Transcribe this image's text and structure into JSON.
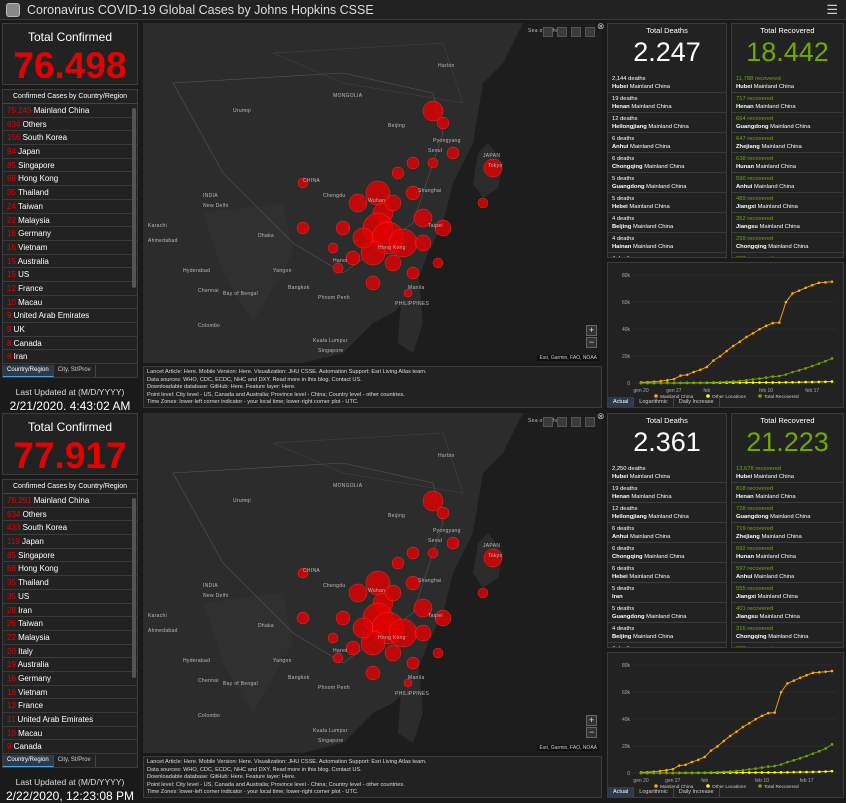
{
  "app": {
    "title": "Coronavirus COVID-19 Global Cases by Johns Hopkins CSSE"
  },
  "colors": {
    "confirmed": "#e60000",
    "recovered": "#70a800",
    "chart_mainland": "#ffaa00",
    "chart_other": "#ffff00",
    "chart_recovered": "#70a800"
  },
  "labels": {
    "total_confirmed": "Total Confirmed",
    "by_country": "Confirmed Cases by Country/Region",
    "tab_country": "Country/Region",
    "tab_city": "City, St/Prov",
    "last_updated": "Last Updated at (M/D/YYYY)",
    "total_deaths": "Total Deaths",
    "total_recovered": "Total Recovered",
    "chart_tabs": [
      "Actual",
      "Logarithmic",
      "Daily Increase"
    ],
    "attribution": "Esri, Garmin, FAO, NOAA",
    "info_line1": "Lancet Article: Here. Mobile Version: Here. Visualization: JHU CSSE. Automation Support: Esri Living Atlas team.",
    "info_line2": "Data sources: WHO, CDC, ECDC, NHC and DXY. Read more in this blog. Contact US.",
    "info_line3": "Downloadable database: GitHub: Here. Feature layer: Here.",
    "info_line4": "Point level: City level - US, Canada and Australia; Province level - China; Country level - other countries.",
    "info_line5": "Time Zones: lower-left corner indicator - your local time; lower-right corner plot - UTC."
  },
  "map_labels": [
    "MONGOLIA",
    "CHINA",
    "JAPAN",
    "INDIA",
    "Seoul",
    "Beijing",
    "Tokyo",
    "Shanghai",
    "Hong Kong",
    "Taipei",
    "Manila",
    "Bangkok",
    "New Delhi",
    "Hanoi",
    "Dhaka",
    "Yangon",
    "Urumqi",
    "Karachi",
    "Ahmedabad",
    "Hyderabad",
    "Chennai",
    "Colombo",
    "Bay of Bengal",
    "Phnom Penh",
    "PHILIPPINES",
    "Kuala Lumpur",
    "Singapore",
    "Pyongyang",
    "Harbin",
    "Sea of Okhotsk",
    "Chengdu",
    "Wuhan"
  ],
  "snapshots": [
    {
      "total_confirmed": "76.498",
      "last_updated": "2/21/2020, 4:43:02 AM",
      "countries": [
        [
          "75.245",
          "Mainland China"
        ],
        [
          "634",
          "Others"
        ],
        [
          "156",
          "South Korea"
        ],
        [
          "94",
          "Japan"
        ],
        [
          "85",
          "Singapore"
        ],
        [
          "68",
          "Hong Kong"
        ],
        [
          "35",
          "Thailand"
        ],
        [
          "24",
          "Taiwan"
        ],
        [
          "22",
          "Malaysia"
        ],
        [
          "16",
          "Germany"
        ],
        [
          "16",
          "Vietnam"
        ],
        [
          "15",
          "Australia"
        ],
        [
          "15",
          "US"
        ],
        [
          "12",
          "France"
        ],
        [
          "10",
          "Macau"
        ],
        [
          "9",
          "United Arab Emirates"
        ],
        [
          "9",
          "UK"
        ],
        [
          "8",
          "Canada"
        ],
        [
          "8",
          "Iran"
        ]
      ],
      "total_deaths": "2.247",
      "deaths": [
        [
          "2,144 deaths",
          "Hubei",
          "Mainland China"
        ],
        [
          "19 deaths",
          "Henan",
          "Mainland China"
        ],
        [
          "12 deaths",
          "Heilongjiang",
          "Mainland China"
        ],
        [
          "6 deaths",
          "Anhui",
          "Mainland China"
        ],
        [
          "6 deaths",
          "Chongqing",
          "Mainland China"
        ],
        [
          "5 deaths",
          "Guangdong",
          "Mainland China"
        ],
        [
          "5 deaths",
          "Hebei",
          "Mainland China"
        ],
        [
          "4 deaths",
          "Beijing",
          "Mainland China"
        ],
        [
          "4 deaths",
          "Hainan",
          "Mainland China"
        ],
        [
          "4 deaths",
          "",
          ""
        ]
      ],
      "total_recovered": "18.442",
      "recovered": [
        [
          "11,788 recovered",
          "Hubei",
          "Mainland China"
        ],
        [
          "717 recovered",
          "Henan",
          "Mainland China"
        ],
        [
          "664 recovered",
          "Guangdong",
          "Mainland China"
        ],
        [
          "647 recovered",
          "Zhejiang",
          "Mainland China"
        ],
        [
          "638 recovered",
          "Hunan",
          "Mainland China"
        ],
        [
          "590 recovered",
          "Anhui",
          "Mainland China"
        ],
        [
          "489 recovered",
          "Jiangxi",
          "Mainland China"
        ],
        [
          "352 recovered",
          "Jiangsu",
          "Mainland China"
        ],
        [
          "299 recovered",
          "Chongqing",
          "Mainland China"
        ],
        [
          "270 recovered",
          "",
          ""
        ]
      ],
      "chart_active_tab": 0
    },
    {
      "total_confirmed": "77.917",
      "last_updated": "2/22/2020, 12:23:08 PM",
      "countries": [
        [
          "76.291",
          "Mainland China"
        ],
        [
          "634",
          "Others"
        ],
        [
          "433",
          "South Korea"
        ],
        [
          "119",
          "Japan"
        ],
        [
          "85",
          "Singapore"
        ],
        [
          "68",
          "Hong Kong"
        ],
        [
          "35",
          "Thailand"
        ],
        [
          "35",
          "US"
        ],
        [
          "28",
          "Iran"
        ],
        [
          "26",
          "Taiwan"
        ],
        [
          "22",
          "Malaysia"
        ],
        [
          "20",
          "Italy"
        ],
        [
          "19",
          "Australia"
        ],
        [
          "16",
          "Germany"
        ],
        [
          "16",
          "Vietnam"
        ],
        [
          "12",
          "France"
        ],
        [
          "11",
          "United Arab Emirates"
        ],
        [
          "10",
          "Macau"
        ],
        [
          "9",
          "Canada"
        ]
      ],
      "total_deaths": "2.361",
      "deaths": [
        [
          "2,250 deaths",
          "Hubei",
          "Mainland China"
        ],
        [
          "19 deaths",
          "Henan",
          "Mainland China"
        ],
        [
          "12 deaths",
          "Heilongjiang",
          "Mainland China"
        ],
        [
          "6 deaths",
          "Anhui",
          "Mainland China"
        ],
        [
          "6 deaths",
          "Chongqing",
          "Mainland China"
        ],
        [
          "6 deaths",
          "Hebei",
          "Mainland China"
        ],
        [
          "5 deaths",
          "Iran",
          ""
        ],
        [
          "5 deaths",
          "Guangdong",
          "Mainland China"
        ],
        [
          "4 deaths",
          "Beijing",
          "Mainland China"
        ],
        [
          "4 deaths",
          "",
          ""
        ]
      ],
      "total_recovered": "21.223",
      "recovered": [
        [
          "13,678 recovered",
          "Hubei",
          "Mainland China"
        ],
        [
          "818 recovered",
          "Henan",
          "Mainland China"
        ],
        [
          "728 recovered",
          "Guangdong",
          "Mainland China"
        ],
        [
          "719 recovered",
          "Zhejiang",
          "Mainland China"
        ],
        [
          "692 recovered",
          "Hunan",
          "Mainland China"
        ],
        [
          "597 recovered",
          "Anhui",
          "Mainland China"
        ],
        [
          "555 recovered",
          "Jiangxi",
          "Mainland China"
        ],
        [
          "401 recovered",
          "Jiangsu",
          "Mainland China"
        ],
        [
          "316 recovered",
          "Chongqing",
          "Mainland China"
        ],
        [
          "302 recovered",
          "",
          ""
        ]
      ],
      "chart_active_tab": 0
    }
  ],
  "chart_data": [
    {
      "type": "line",
      "title": "",
      "x": [
        "jan 22",
        "jan 23",
        "jan 24",
        "jan 25",
        "jan 26",
        "jan 27",
        "jan 28",
        "jan 29",
        "jan 30",
        "jan 31",
        "feb 1",
        "feb 2",
        "feb 3",
        "feb 4",
        "feb 5",
        "feb 6",
        "feb 7",
        "feb 8",
        "feb 9",
        "feb 10",
        "feb 11",
        "feb 12",
        "feb 13",
        "feb 14",
        "feb 15",
        "feb 16",
        "feb 17",
        "feb 18",
        "feb 19",
        "feb 20"
      ],
      "x_tick_labels": [
        "gen 20",
        "gen 27",
        "feb",
        "feb 10",
        "feb 17"
      ],
      "y_tick_labels": [
        "0",
        "20k",
        "40k",
        "60k",
        "80k"
      ],
      "ylim": [
        0,
        80000
      ],
      "series": [
        {
          "name": "Mainland China",
          "values": [
            548,
            641,
            918,
            1401,
            2067,
            2869,
            5501,
            6087,
            8141,
            9802,
            11891,
            16630,
            19716,
            23707,
            27440,
            30587,
            34110,
            36814,
            39829,
            42354,
            44386,
            44759,
            59895,
            66358,
            68413,
            70513,
            72434,
            74211,
            74619,
            75077
          ]
        },
        {
          "name": "Other Locations",
          "values": [
            7,
            12,
            20,
            31,
            55,
            70,
            84,
            98,
            112,
            136,
            149,
            163,
            181,
            195,
            219,
            247,
            275,
            309,
            331,
            384,
            397,
            449,
            497,
            522,
            616,
            698,
            703,
            806,
            888,
            1076
          ]
        },
        {
          "name": "Total Recovered",
          "values": [
            28,
            30,
            36,
            39,
            52,
            61,
            107,
            126,
            143,
            222,
            295,
            475,
            632,
            892,
            1153,
            1540,
            2050,
            2649,
            3281,
            3996,
            4740,
            5150,
            6295,
            8058,
            9395,
            10865,
            12583,
            14352,
            16121,
            18177
          ]
        }
      ],
      "legend": "bottom"
    },
    {
      "type": "line",
      "title": "",
      "x": [
        "jan 22",
        "jan 23",
        "jan 24",
        "jan 25",
        "jan 26",
        "jan 27",
        "jan 28",
        "jan 29",
        "jan 30",
        "jan 31",
        "feb 1",
        "feb 2",
        "feb 3",
        "feb 4",
        "feb 5",
        "feb 6",
        "feb 7",
        "feb 8",
        "feb 9",
        "feb 10",
        "feb 11",
        "feb 12",
        "feb 13",
        "feb 14",
        "feb 15",
        "feb 16",
        "feb 17",
        "feb 18",
        "feb 19",
        "feb 20",
        "feb 21"
      ],
      "x_tick_labels": [
        "gen 20",
        "gen 27",
        "feb",
        "feb 10",
        "feb 17"
      ],
      "y_tick_labels": [
        "0",
        "20k",
        "40k",
        "60k",
        "80k"
      ],
      "ylim": [
        0,
        80000
      ],
      "series": [
        {
          "name": "Mainland China",
          "values": [
            548,
            641,
            918,
            1401,
            2067,
            2869,
            5501,
            6087,
            8141,
            9802,
            11891,
            16630,
            19716,
            23707,
            27440,
            30587,
            34110,
            36814,
            39829,
            42354,
            44386,
            44759,
            59895,
            66358,
            68413,
            70513,
            72434,
            74211,
            74619,
            75077,
            75550
          ]
        },
        {
          "name": "Other Locations",
          "values": [
            7,
            12,
            20,
            31,
            55,
            70,
            84,
            98,
            112,
            136,
            149,
            163,
            181,
            195,
            219,
            247,
            275,
            309,
            331,
            384,
            397,
            449,
            497,
            522,
            616,
            698,
            703,
            806,
            888,
            1076,
            1385
          ]
        },
        {
          "name": "Total Recovered",
          "values": [
            28,
            30,
            36,
            39,
            52,
            61,
            107,
            126,
            143,
            222,
            295,
            475,
            632,
            892,
            1153,
            1540,
            2050,
            2649,
            3281,
            3996,
            4740,
            5150,
            6295,
            8058,
            9395,
            10865,
            12583,
            14352,
            16121,
            18177,
            21223
          ]
        }
      ],
      "legend": "bottom"
    }
  ]
}
